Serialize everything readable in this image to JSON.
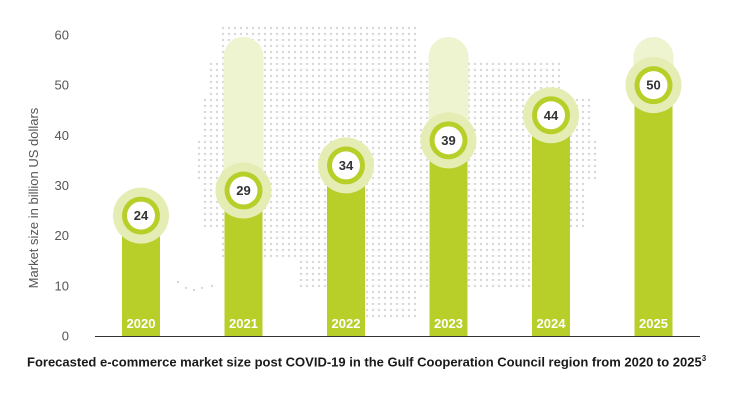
{
  "chart_data": {
    "type": "bar",
    "categories": [
      "2020",
      "2021",
      "2022",
      "2023",
      "2024",
      "2025"
    ],
    "values": [
      24,
      29,
      34,
      39,
      44,
      50
    ],
    "ylabel": "Market size in billion US dollars",
    "ylim": [
      0,
      60
    ],
    "yticks": [
      0,
      10,
      20,
      30,
      40,
      50,
      60
    ],
    "grid": false,
    "title": "Forecasted e-commerce market size post COVID-19 in the Gulf Cooperation Council region from 2020 to 2025",
    "title_footnote": "3",
    "colors": {
      "bar": "#b8cf2a",
      "halo": "#e5edb4",
      "ghost": "#eef3d0",
      "map_dots": "#d8d8d8",
      "axis": "#333333"
    }
  }
}
